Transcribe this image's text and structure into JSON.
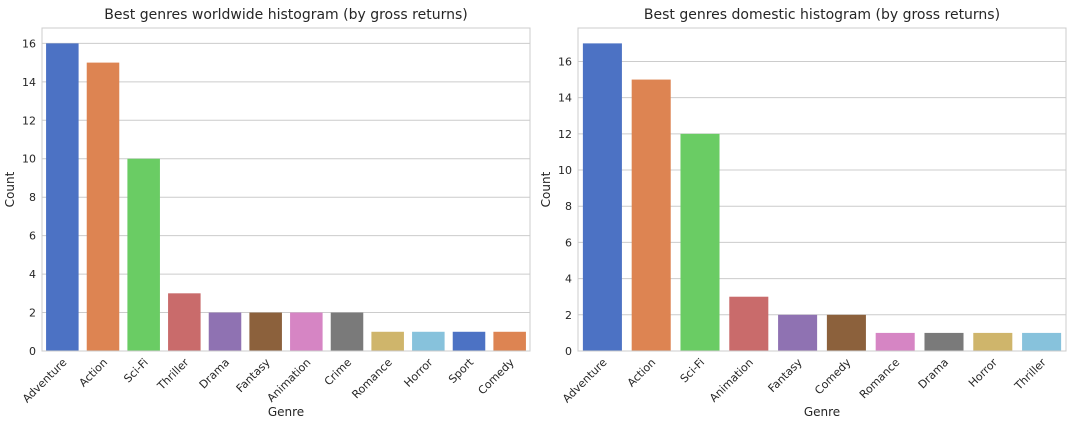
{
  "chart_data": [
    {
      "type": "bar",
      "title": "Best genres worldwide histogram (by gross returns)",
      "xlabel": "Genre",
      "ylabel": "Count",
      "categories": [
        "Adventure",
        "Action",
        "Sci-Fi",
        "Thriller",
        "Drama",
        "Fantasy",
        "Animation",
        "Crime",
        "Romance",
        "Horror",
        "Sport",
        "Comedy"
      ],
      "values": [
        16,
        15,
        10,
        3,
        2,
        2,
        2,
        2,
        1,
        1,
        1,
        1
      ],
      "ylim": [
        0,
        16.8
      ],
      "yticks": [
        0,
        2,
        4,
        6,
        8,
        10,
        12,
        14,
        16
      ],
      "grid": "horizontal",
      "colors": [
        "#4c72c4",
        "#dd8452",
        "#6acc64",
        "#c96b6b",
        "#8f72b2",
        "#8c613c",
        "#d685c4",
        "#7a7a7a",
        "#cfb56b",
        "#87c2dc",
        "#4c72c4",
        "#dd8452"
      ]
    },
    {
      "type": "bar",
      "title": "Best genres domestic histogram (by gross returns)",
      "xlabel": "Genre",
      "ylabel": "Count",
      "categories": [
        "Adventure",
        "Action",
        "Sci-Fi",
        "Animation",
        "Fantasy",
        "Comedy",
        "Romance",
        "Drama",
        "Horror",
        "Thriller"
      ],
      "values": [
        17,
        15,
        12,
        3,
        2,
        2,
        1,
        1,
        1,
        1
      ],
      "ylim": [
        0,
        17.85
      ],
      "yticks": [
        0,
        2,
        4,
        6,
        8,
        10,
        12,
        14,
        16
      ],
      "grid": "horizontal",
      "colors": [
        "#4c72c4",
        "#dd8452",
        "#6acc64",
        "#c96b6b",
        "#8f72b2",
        "#8c613c",
        "#d685c4",
        "#7a7a7a",
        "#cfb56b",
        "#87c2dc"
      ]
    }
  ]
}
